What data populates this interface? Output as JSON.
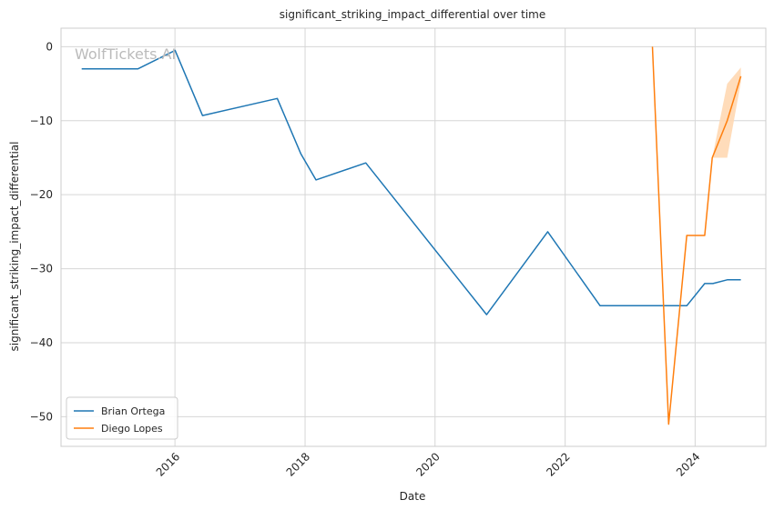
{
  "chart_data": {
    "type": "line",
    "title": "significant_striking_impact_differential over time",
    "xlabel": "Date",
    "ylabel": "significant_striking_impact_differential",
    "watermark": "WolfTickets.AI",
    "x_ticks": [
      "2016",
      "2018",
      "2020",
      "2022",
      "2024"
    ],
    "y_ticks": [
      "0",
      "−10",
      "−20",
      "−30",
      "−40",
      "−50"
    ],
    "y_tick_values": [
      0,
      -10,
      -20,
      -30,
      -40,
      -50
    ],
    "xlim": [
      "2014-04-01",
      "2025-02-01"
    ],
    "ylim": [
      -54,
      2.5
    ],
    "grid": true,
    "legend_position": "lower-left",
    "series": [
      {
        "name": "Brian Ortega",
        "color": "#1f77b4",
        "points": [
          [
            "2014-07-26",
            -3.0
          ],
          [
            "2015-06-06",
            -3.0
          ],
          [
            "2016-01-02",
            -0.5
          ],
          [
            "2016-06-04",
            -9.3
          ],
          [
            "2017-07-29",
            -7.0
          ],
          [
            "2017-12-09",
            -14.5
          ],
          [
            "2018-03-03",
            -18.0
          ],
          [
            "2018-12-08",
            -15.7
          ],
          [
            "2020-10-17",
            -36.2
          ],
          [
            "2021-09-25",
            -25.0
          ],
          [
            "2022-07-16",
            -35.0
          ],
          [
            "2023-11-15",
            -35.0
          ],
          [
            "2024-02-24",
            -32.0
          ],
          [
            "2024-04-10",
            -32.0
          ],
          [
            "2024-06-29",
            -31.5
          ],
          [
            "2024-09-14",
            -31.5
          ]
        ]
      },
      {
        "name": "Diego Lopes",
        "color": "#ff7f0e",
        "band_color": "#ffd8b3",
        "points": [
          [
            "2023-05-06",
            0.0
          ],
          [
            "2023-08-05",
            -51.0
          ],
          [
            "2023-11-15",
            -25.5
          ],
          [
            "2024-02-24",
            -25.5
          ],
          [
            "2024-04-06",
            -15.0
          ],
          [
            "2024-06-29",
            -10.0
          ],
          [
            "2024-09-14",
            -4.0
          ]
        ],
        "band": [
          [
            "2024-04-06",
            -15.0,
            -15.0
          ],
          [
            "2024-06-29",
            -15.0,
            -5.0
          ],
          [
            "2024-09-14",
            -4.8,
            -2.8
          ]
        ]
      }
    ]
  }
}
